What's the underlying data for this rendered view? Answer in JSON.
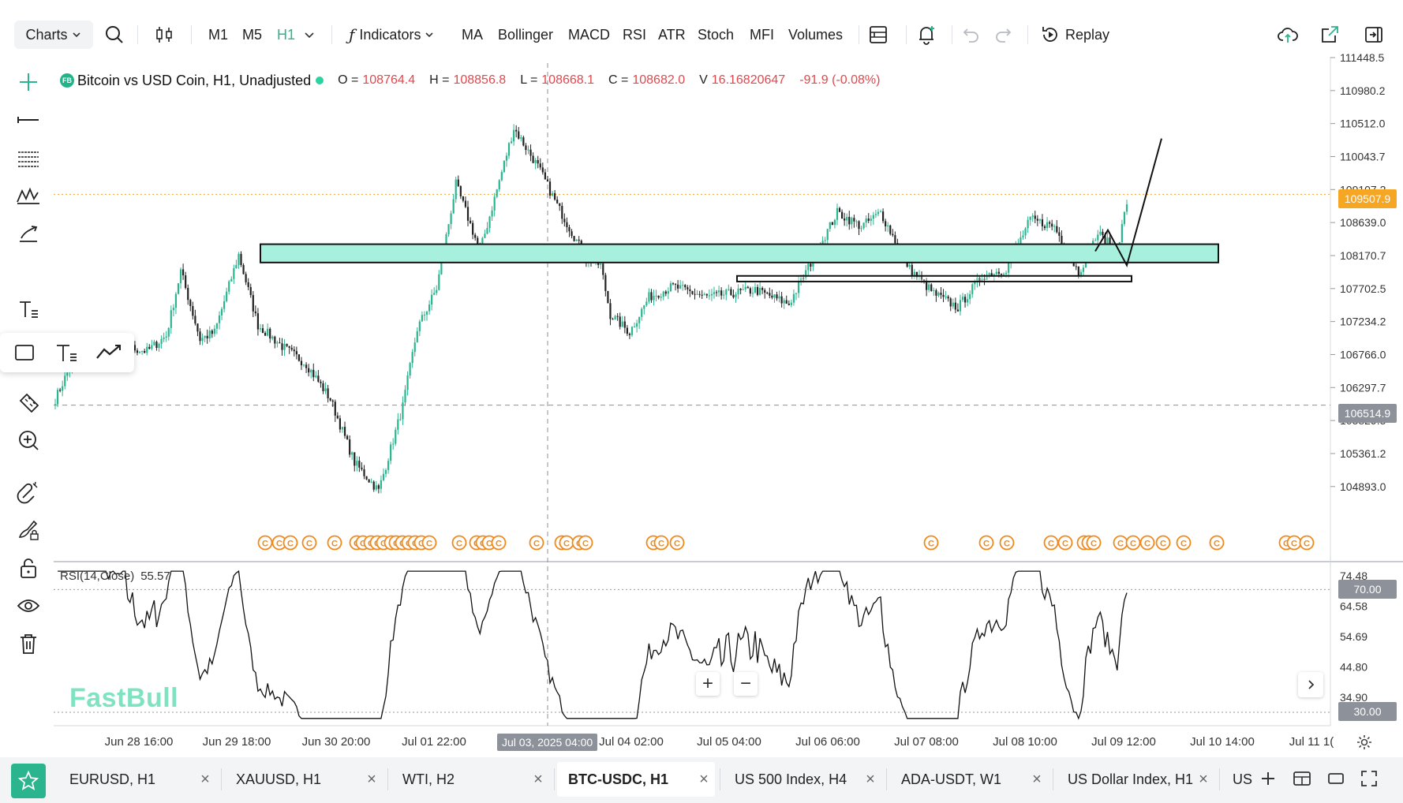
{
  "toolbar": {
    "charts_label": "Charts",
    "timeframes": [
      "M1",
      "M5",
      "H1"
    ],
    "active_timeframe": "H1",
    "indicators_label": "Indicators",
    "indicator_shortcuts": [
      "MA",
      "Bollinger",
      "MACD",
      "RSI",
      "ATR",
      "Stoch",
      "MFI",
      "Volumes"
    ],
    "replay_label": "Replay"
  },
  "legend": {
    "badge": "FB",
    "symbol": "Bitcoin vs USD Coin, H1, Unadjusted",
    "o_label": "O =",
    "o": "108764.4",
    "h_label": "H =",
    "h": "108856.8",
    "l_label": "L =",
    "l": "108668.1",
    "c_label": "C =",
    "c": "108682.0",
    "v_label": "V",
    "v": "16.16820647",
    "change": "-91.9 (-0.08%)"
  },
  "price_axis": {
    "labels": [
      "111448.5",
      "110980.2",
      "110512.0",
      "110043.7",
      "109107.2",
      "108639.0",
      "108170.7",
      "107702.5",
      "107234.2",
      "106766.0",
      "106297.7",
      "105829.5",
      "105361.2",
      "104893.0"
    ],
    "current_price": "109507.9",
    "crosshair_price": "106514.9"
  },
  "rsi": {
    "label": "RSI(14,Close)",
    "value": "55.57",
    "axis_labels": [
      "74.48",
      "64.58",
      "54.69",
      "44.80",
      "34.90"
    ],
    "upper_level": "70.00",
    "lower_level": "30.00"
  },
  "time_axis": {
    "labels": [
      "Jun 28 16:00",
      "Jun 29 18:00",
      "Jun 30 20:00",
      "Jul 01 22:00",
      "Jul 04 02:00",
      "Jul 05 04:00",
      "Jul 06 06:00",
      "Jul 07 08:00",
      "Jul 08 10:00",
      "Jul 09 12:00",
      "Jul 10 14:00",
      "Jul 11 1("
    ],
    "crosshair_time": "Jul 03, 2025 04:00"
  },
  "event_marker_letter": "C",
  "watermark": "FastBull",
  "zoom": {
    "plus": "+",
    "minus": "−"
  },
  "tabs": [
    {
      "label": "EURUSD, H1"
    },
    {
      "label": "XAUUSD, H1"
    },
    {
      "label": "WTI, H2"
    },
    {
      "label": "BTC-USDC, H1"
    },
    {
      "label": "US 500 Index, H4"
    },
    {
      "label": "ADA-USDT, W1"
    },
    {
      "label": "US Dollar Index, H1"
    },
    {
      "label": "US"
    }
  ],
  "active_tab": "BTC-USDC, H1",
  "tab_close": "×",
  "colors": {
    "accent": "#2bb58f",
    "up": "#2bb58f",
    "down": "#222222",
    "price_down_text": "#e0484e",
    "current_price_tag": "#f5a623",
    "event_marker": "#f0891d",
    "zone_fill": "#a8f0de"
  },
  "icons": [
    "search-icon",
    "candles-icon",
    "chevron-down-icon",
    "fx-icon",
    "layout-icon",
    "alert-bell-icon",
    "undo-icon",
    "redo-icon",
    "replay-icon",
    "cloud-icon",
    "share-icon",
    "exit-icon",
    "crosshair-icon",
    "horizontal-line-icon",
    "fib-icon",
    "pattern-icon",
    "trend-icon",
    "rectangle-icon",
    "text-icon",
    "path-icon",
    "emoji-icon",
    "ruler-icon",
    "zoom-in-icon",
    "magnet-icon",
    "brush-lock-icon",
    "lock-icon",
    "eye-icon",
    "trash-icon",
    "star-icon",
    "plus-icon",
    "split-icon",
    "window-icon",
    "fullscreen-icon",
    "settings-icon"
  ]
}
